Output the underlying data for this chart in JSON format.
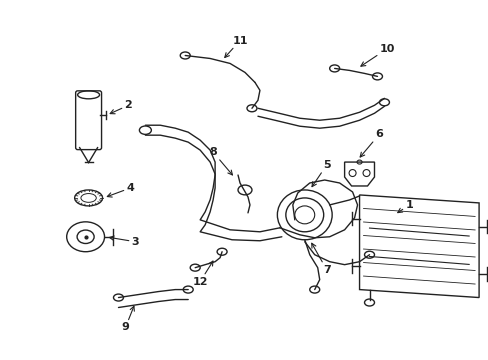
{
  "background_color": "#ffffff",
  "line_color": "#222222",
  "line_width": 1.0,
  "fig_width": 4.89,
  "fig_height": 3.6,
  "dpi": 100
}
